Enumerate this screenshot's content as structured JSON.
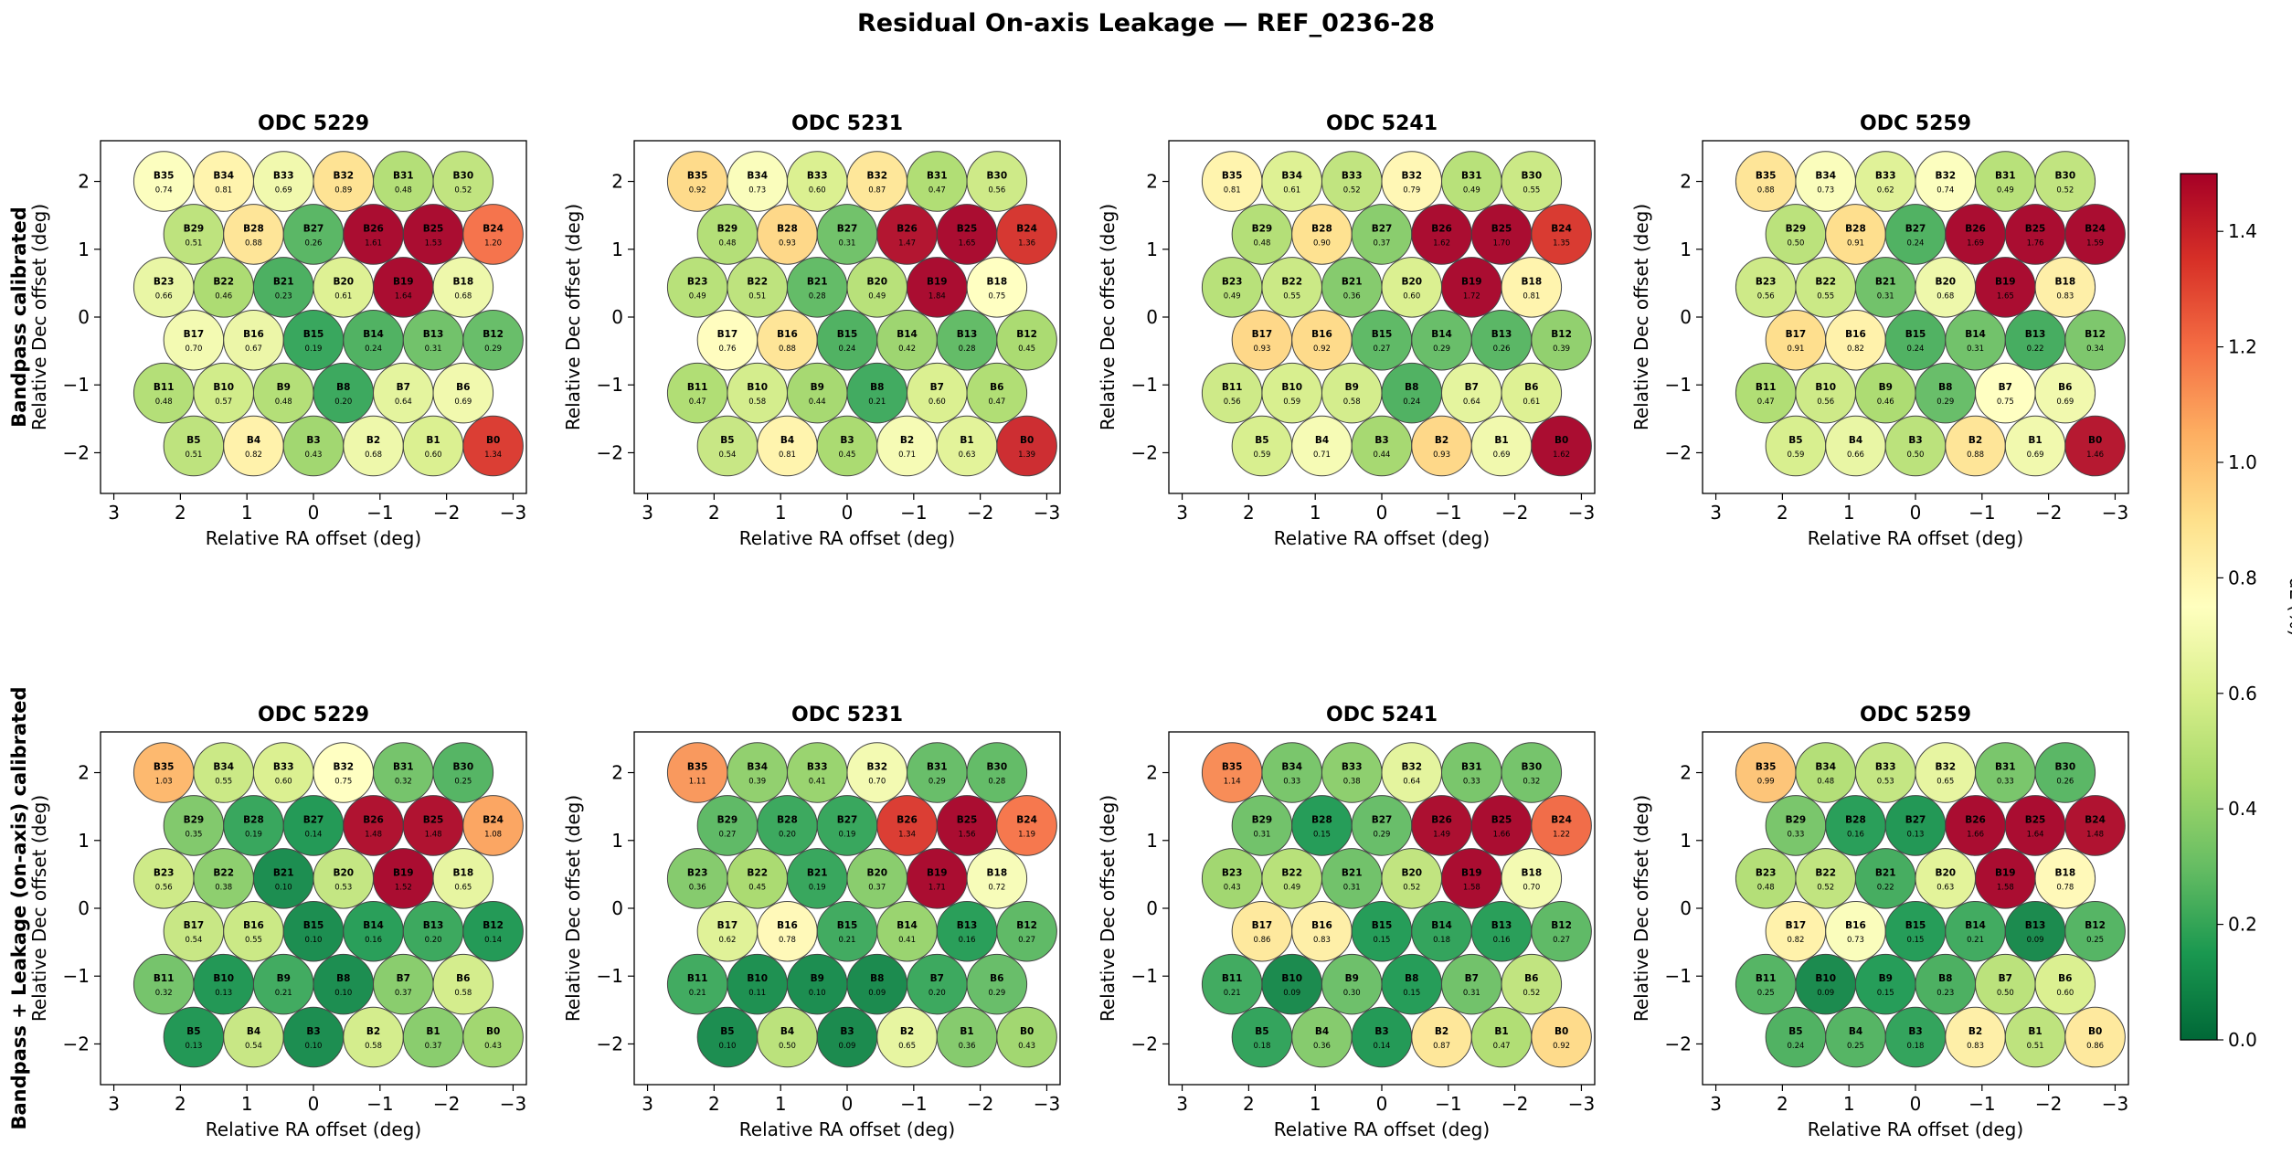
{
  "figure": {
    "title": "Residual On-axis Leakage — REF_0236-28",
    "row_labels": [
      "Bandpass calibrated",
      "Bandpass + Leakage (on-axis) calibrated"
    ],
    "col_titles": [
      "ODC 5229",
      "ODC 5231",
      "ODC 5241",
      "ODC 5259"
    ]
  },
  "chart_data": {
    "type": "heatmap",
    "title": "Residual On-axis Leakage — REF_0236-28",
    "xlabel": "Relative RA offset (deg)",
    "ylabel": "Relative Dec offset (deg)",
    "xlim": [
      3.2,
      -3.2
    ],
    "ylim": [
      -2.6,
      2.6
    ],
    "xticks": [
      3,
      2,
      1,
      0,
      -1,
      -2,
      -3
    ],
    "yticks": [
      -2,
      -1,
      0,
      1,
      2
    ],
    "beam_radius_deg": 0.45,
    "colorbar": {
      "label": "dL (%)",
      "vmin": 0.0,
      "vmax": 1.5,
      "ticks": [
        0.0,
        0.2,
        0.4,
        0.6,
        0.8,
        1.0,
        1.2,
        1.4
      ],
      "colormap": "RdYlGn_r"
    },
    "beams": [
      {
        "name": "B35",
        "ra": 2.25,
        "dec": 2.0
      },
      {
        "name": "B34",
        "ra": 1.35,
        "dec": 2.0
      },
      {
        "name": "B33",
        "ra": 0.45,
        "dec": 2.0
      },
      {
        "name": "B32",
        "ra": -0.45,
        "dec": 2.0
      },
      {
        "name": "B31",
        "ra": -1.35,
        "dec": 2.0
      },
      {
        "name": "B30",
        "ra": -2.25,
        "dec": 2.0
      },
      {
        "name": "B29",
        "ra": 1.8,
        "dec": 1.22
      },
      {
        "name": "B28",
        "ra": 0.9,
        "dec": 1.22
      },
      {
        "name": "B27",
        "ra": 0.0,
        "dec": 1.22
      },
      {
        "name": "B26",
        "ra": -0.9,
        "dec": 1.22
      },
      {
        "name": "B25",
        "ra": -1.8,
        "dec": 1.22
      },
      {
        "name": "B24",
        "ra": -2.7,
        "dec": 1.22
      },
      {
        "name": "B23",
        "ra": 2.25,
        "dec": 0.44
      },
      {
        "name": "B22",
        "ra": 1.35,
        "dec": 0.44
      },
      {
        "name": "B21",
        "ra": 0.45,
        "dec": 0.44
      },
      {
        "name": "B20",
        "ra": -0.45,
        "dec": 0.44
      },
      {
        "name": "B19",
        "ra": -1.35,
        "dec": 0.44
      },
      {
        "name": "B18",
        "ra": -2.25,
        "dec": 0.44
      },
      {
        "name": "B17",
        "ra": 1.8,
        "dec": -0.34
      },
      {
        "name": "B16",
        "ra": 0.9,
        "dec": -0.34
      },
      {
        "name": "B15",
        "ra": 0.0,
        "dec": -0.34
      },
      {
        "name": "B14",
        "ra": -0.9,
        "dec": -0.34
      },
      {
        "name": "B13",
        "ra": -1.8,
        "dec": -0.34
      },
      {
        "name": "B12",
        "ra": -2.7,
        "dec": -0.34
      },
      {
        "name": "B11",
        "ra": 2.25,
        "dec": -1.12
      },
      {
        "name": "B10",
        "ra": 1.35,
        "dec": -1.12
      },
      {
        "name": "B9",
        "ra": 0.45,
        "dec": -1.12
      },
      {
        "name": "B8",
        "ra": -0.45,
        "dec": -1.12
      },
      {
        "name": "B7",
        "ra": -1.35,
        "dec": -1.12
      },
      {
        "name": "B6",
        "ra": -2.25,
        "dec": -1.12
      },
      {
        "name": "B5",
        "ra": 1.8,
        "dec": -1.9
      },
      {
        "name": "B4",
        "ra": 0.9,
        "dec": -1.9
      },
      {
        "name": "B3",
        "ra": 0.0,
        "dec": -1.9
      },
      {
        "name": "B2",
        "ra": -0.9,
        "dec": -1.9
      },
      {
        "name": "B1",
        "ra": -1.8,
        "dec": -1.9
      },
      {
        "name": "B0",
        "ra": -2.7,
        "dec": -1.9
      }
    ],
    "panels": [
      {
        "row": 0,
        "col": 0,
        "title": "ODC 5229",
        "values": [
          0.74,
          0.81,
          0.69,
          0.89,
          0.48,
          0.52,
          0.51,
          0.88,
          0.26,
          1.61,
          1.53,
          1.2,
          0.66,
          0.46,
          0.23,
          0.61,
          1.64,
          0.68,
          0.7,
          0.67,
          0.19,
          0.24,
          0.31,
          0.29,
          0.48,
          0.57,
          0.48,
          0.2,
          0.64,
          0.69,
          0.51,
          0.82,
          0.43,
          0.68,
          0.6,
          1.34
        ]
      },
      {
        "row": 0,
        "col": 1,
        "title": "ODC 5231",
        "values": [
          0.92,
          0.73,
          0.6,
          0.87,
          0.47,
          0.56,
          0.48,
          0.93,
          0.31,
          1.47,
          1.65,
          1.36,
          0.49,
          0.51,
          0.28,
          0.49,
          1.84,
          0.75,
          0.76,
          0.88,
          0.24,
          0.42,
          0.28,
          0.45,
          0.47,
          0.58,
          0.44,
          0.21,
          0.6,
          0.47,
          0.54,
          0.81,
          0.45,
          0.71,
          0.63,
          1.39
        ]
      },
      {
        "row": 0,
        "col": 2,
        "title": "ODC 5241",
        "values": [
          0.81,
          0.61,
          0.52,
          0.79,
          0.49,
          0.55,
          0.48,
          0.9,
          0.37,
          1.62,
          1.7,
          1.35,
          0.49,
          0.55,
          0.36,
          0.6,
          1.72,
          0.81,
          0.93,
          0.92,
          0.27,
          0.29,
          0.26,
          0.39,
          0.56,
          0.59,
          0.58,
          0.24,
          0.64,
          0.61,
          0.59,
          0.71,
          0.44,
          0.93,
          0.69,
          1.62
        ]
      },
      {
        "row": 0,
        "col": 3,
        "title": "ODC 5259",
        "values": [
          0.88,
          0.73,
          0.62,
          0.74,
          0.49,
          0.52,
          0.5,
          0.91,
          0.24,
          1.69,
          1.76,
          1.59,
          0.56,
          0.55,
          0.31,
          0.68,
          1.65,
          0.83,
          0.91,
          0.82,
          0.24,
          0.31,
          0.22,
          0.34,
          0.47,
          0.56,
          0.46,
          0.29,
          0.75,
          0.69,
          0.59,
          0.66,
          0.5,
          0.88,
          0.69,
          1.46
        ]
      },
      {
        "row": 1,
        "col": 0,
        "title": "ODC 5229",
        "values": [
          1.03,
          0.55,
          0.6,
          0.75,
          0.32,
          0.25,
          0.35,
          0.19,
          0.14,
          1.48,
          1.48,
          1.08,
          0.56,
          0.38,
          0.1,
          0.53,
          1.52,
          0.65,
          0.54,
          0.55,
          0.1,
          0.16,
          0.2,
          0.14,
          0.32,
          0.13,
          0.21,
          0.1,
          0.37,
          0.58,
          0.13,
          0.54,
          0.1,
          0.58,
          0.37,
          0.43
        ]
      },
      {
        "row": 1,
        "col": 1,
        "title": "ODC 5231",
        "values": [
          1.11,
          0.39,
          0.41,
          0.7,
          0.29,
          0.28,
          0.27,
          0.2,
          0.19,
          1.34,
          1.56,
          1.19,
          0.36,
          0.45,
          0.19,
          0.37,
          1.71,
          0.72,
          0.62,
          0.78,
          0.21,
          0.41,
          0.16,
          0.27,
          0.21,
          0.11,
          0.1,
          0.09,
          0.2,
          0.29,
          0.1,
          0.5,
          0.09,
          0.65,
          0.36,
          0.43
        ]
      },
      {
        "row": 1,
        "col": 2,
        "title": "ODC 5241",
        "values": [
          1.14,
          0.33,
          0.38,
          0.64,
          0.33,
          0.32,
          0.31,
          0.15,
          0.29,
          1.49,
          1.66,
          1.22,
          0.43,
          0.49,
          0.31,
          0.52,
          1.58,
          0.7,
          0.86,
          0.83,
          0.15,
          0.18,
          0.16,
          0.27,
          0.21,
          0.09,
          0.3,
          0.15,
          0.31,
          0.52,
          0.18,
          0.36,
          0.14,
          0.87,
          0.47,
          0.92
        ]
      },
      {
        "row": 1,
        "col": 3,
        "title": "ODC 5259",
        "values": [
          0.99,
          0.48,
          0.53,
          0.65,
          0.33,
          0.26,
          0.33,
          0.16,
          0.13,
          1.66,
          1.64,
          1.48,
          0.48,
          0.52,
          0.22,
          0.63,
          1.58,
          0.78,
          0.82,
          0.73,
          0.15,
          0.21,
          0.09,
          0.25,
          0.25,
          0.09,
          0.15,
          0.23,
          0.5,
          0.6,
          0.24,
          0.25,
          0.18,
          0.83,
          0.51,
          0.86
        ]
      }
    ]
  }
}
